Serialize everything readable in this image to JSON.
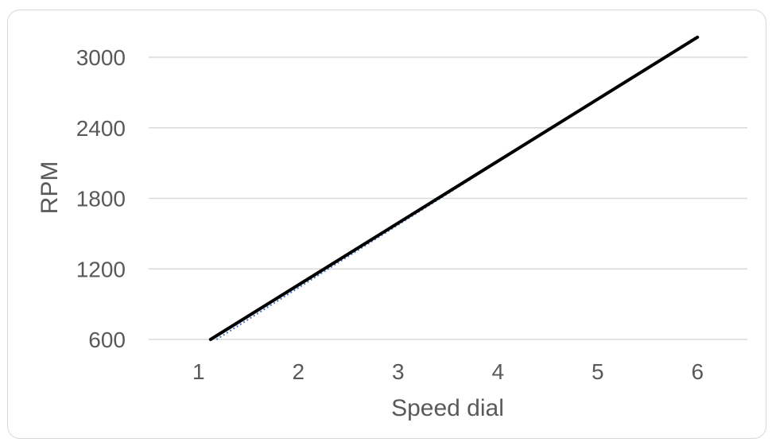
{
  "chart_data": {
    "type": "line",
    "xlabel": "Speed dial",
    "ylabel": "RPM",
    "x_ticks": [
      1,
      2,
      3,
      4,
      5,
      6
    ],
    "y_ticks": [
      600,
      1200,
      1800,
      2400,
      3000
    ],
    "xlim": [
      0.5,
      6.5
    ],
    "ylim": [
      600,
      3000
    ],
    "grid": "horizontal",
    "series": [
      {
        "style": "solid",
        "color": "#000000",
        "x": [
          1.12,
          6.0
        ],
        "y": [
          600,
          3170
        ]
      },
      {
        "style": "dotted",
        "color": "#4472c4",
        "x": [
          1.18,
          6.0
        ],
        "y": [
          600,
          3180
        ]
      }
    ]
  }
}
